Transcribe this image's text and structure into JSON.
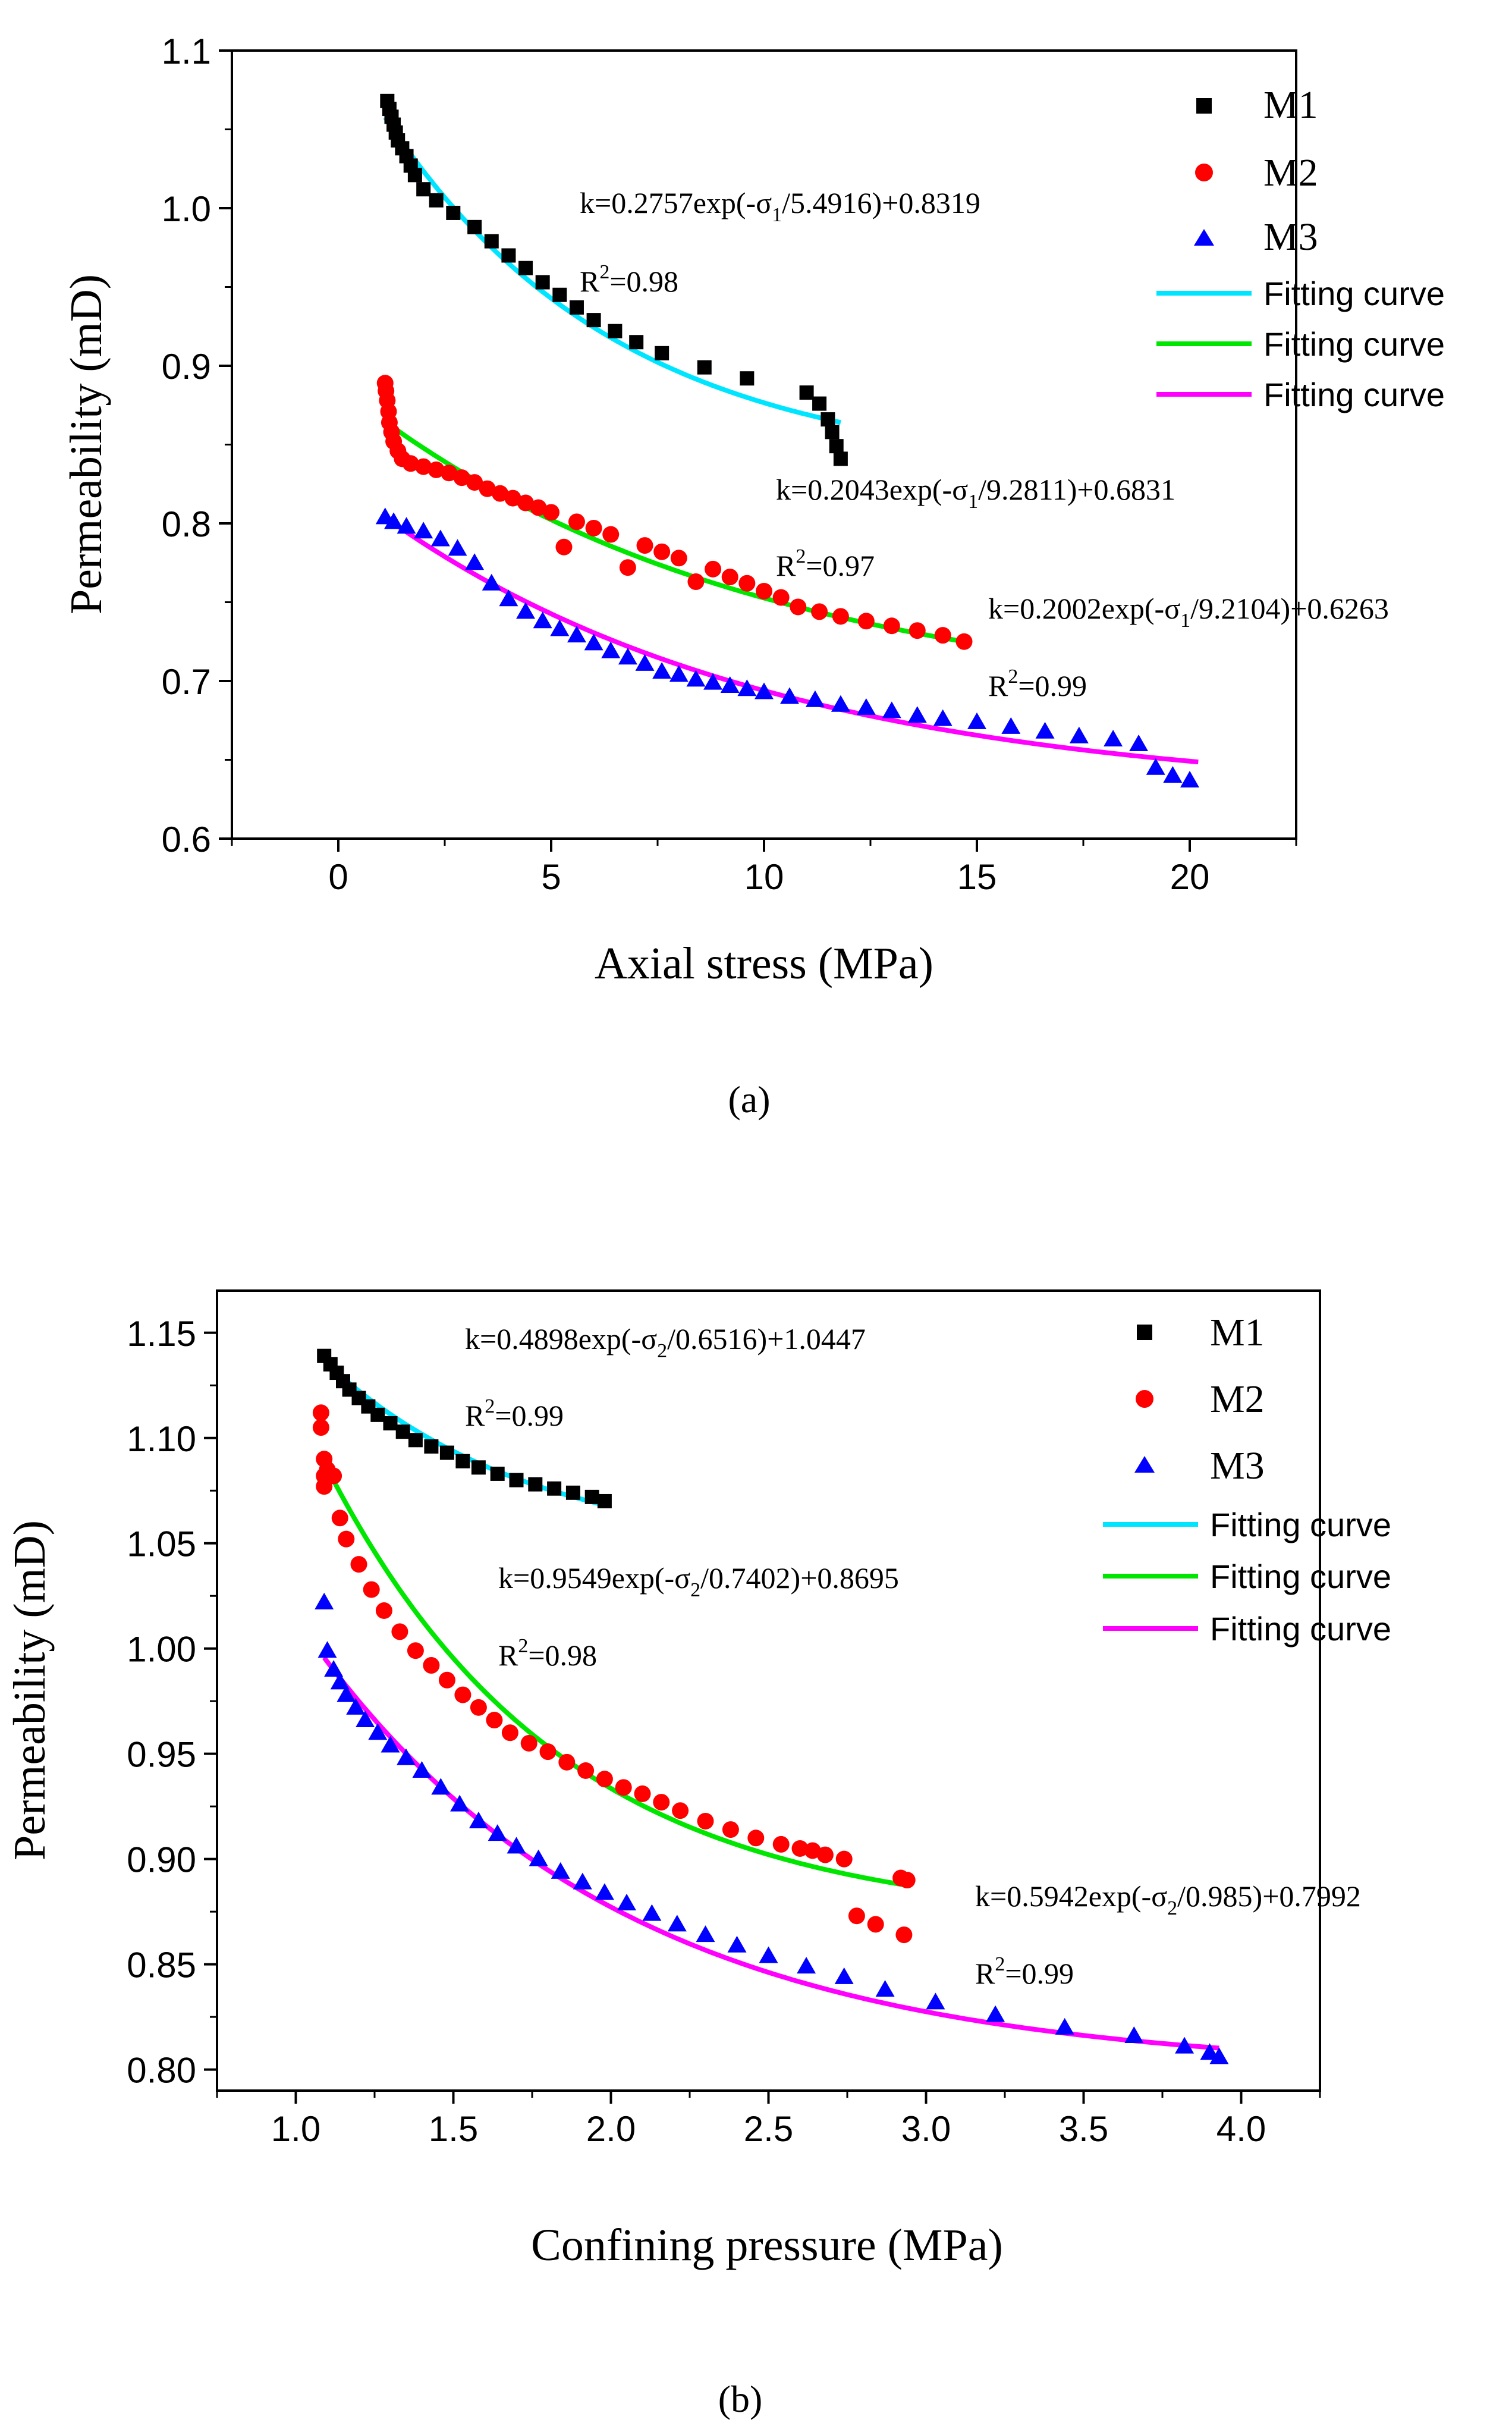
{
  "chart_data": [
    {
      "type": "scatter",
      "panel_label": "(a)",
      "xlabel": "Axial stress (MPa)",
      "ylabel": "Permeability (mD)",
      "xlim": [
        -2.5,
        22.5
      ],
      "ylim": [
        0.6,
        1.1
      ],
      "xticks": [
        0,
        5,
        10,
        15,
        20
      ],
      "yticks": [
        0.6,
        0.7,
        0.8,
        0.9,
        1.0,
        1.1
      ],
      "xtick_labels": [
        "0",
        "5",
        "10",
        "15",
        "20"
      ],
      "ytick_labels": [
        "0.6",
        "0.7",
        "0.8",
        "0.9",
        "1.0",
        "1.1"
      ],
      "series": [
        {
          "name": "M1",
          "marker": "square",
          "color": "#000000",
          "x": [
            1.15,
            1.2,
            1.25,
            1.3,
            1.35,
            1.4,
            1.5,
            1.6,
            1.7,
            1.8,
            2.0,
            2.3,
            2.7,
            3.2,
            3.6,
            4.0,
            4.4,
            4.8,
            5.2,
            5.6,
            6.0,
            6.5,
            7.0,
            7.6,
            8.6,
            9.6,
            11.0,
            11.3,
            11.5,
            11.6,
            11.7,
            11.8
          ],
          "y": [
            1.068,
            1.063,
            1.058,
            1.053,
            1.048,
            1.043,
            1.038,
            1.033,
            1.027,
            1.021,
            1.012,
            1.005,
            0.997,
            0.988,
            0.979,
            0.97,
            0.962,
            0.953,
            0.945,
            0.937,
            0.929,
            0.922,
            0.915,
            0.908,
            0.899,
            0.892,
            0.883,
            0.876,
            0.866,
            0.858,
            0.849,
            0.841
          ]
        },
        {
          "name": "M2",
          "marker": "circle",
          "color": "#ff0000",
          "x": [
            1.1,
            1.12,
            1.15,
            1.18,
            1.2,
            1.25,
            1.3,
            1.4,
            1.5,
            1.7,
            2.0,
            2.3,
            2.6,
            2.9,
            3.2,
            3.5,
            3.8,
            4.1,
            4.4,
            4.7,
            5.0,
            5.3,
            5.6,
            6.0,
            6.4,
            6.8,
            7.2,
            7.6,
            8.0,
            8.4,
            8.8,
            9.2,
            9.6,
            10.0,
            10.4,
            10.8,
            11.3,
            11.8,
            12.4,
            13.0,
            13.6,
            14.2,
            14.7
          ],
          "y": [
            0.889,
            0.884,
            0.878,
            0.871,
            0.864,
            0.858,
            0.852,
            0.846,
            0.841,
            0.838,
            0.836,
            0.834,
            0.832,
            0.829,
            0.826,
            0.822,
            0.819,
            0.816,
            0.813,
            0.81,
            0.807,
            0.785,
            0.801,
            0.797,
            0.793,
            0.772,
            0.786,
            0.782,
            0.778,
            0.763,
            0.771,
            0.766,
            0.762,
            0.757,
            0.753,
            0.747,
            0.744,
            0.741,
            0.738,
            0.735,
            0.732,
            0.729,
            0.725
          ]
        },
        {
          "name": "M3",
          "marker": "triangle",
          "color": "#0000ff",
          "x": [
            1.1,
            1.3,
            1.6,
            2.0,
            2.4,
            2.8,
            3.2,
            3.6,
            4.0,
            4.4,
            4.8,
            5.2,
            5.6,
            6.0,
            6.4,
            6.8,
            7.2,
            7.6,
            8.0,
            8.4,
            8.8,
            9.2,
            9.6,
            10.0,
            10.6,
            11.2,
            11.8,
            12.4,
            13.0,
            13.6,
            14.2,
            15.0,
            15.8,
            16.6,
            17.4,
            18.2,
            18.8,
            19.2,
            19.6,
            20.0
          ],
          "y": [
            0.804,
            0.801,
            0.798,
            0.795,
            0.79,
            0.784,
            0.775,
            0.762,
            0.752,
            0.744,
            0.738,
            0.733,
            0.729,
            0.724,
            0.719,
            0.715,
            0.711,
            0.706,
            0.704,
            0.701,
            0.699,
            0.697,
            0.695,
            0.693,
            0.69,
            0.688,
            0.685,
            0.683,
            0.681,
            0.678,
            0.676,
            0.674,
            0.671,
            0.668,
            0.665,
            0.663,
            0.66,
            0.645,
            0.64,
            0.637
          ]
        }
      ],
      "fits": [
        {
          "name": "Fitting curve",
          "color": "#00e5ff",
          "a": 0.2757,
          "b": 5.4916,
          "c": 0.8319,
          "x_range": [
            1.1,
            11.8
          ]
        },
        {
          "name": "Fitting curve",
          "color": "#00e600",
          "a": 0.2043,
          "b": 9.2811,
          "c": 0.6831,
          "x_range": [
            1.1,
            14.7
          ]
        },
        {
          "name": "Fitting curve",
          "color": "#ff00ff",
          "a": 0.2002,
          "b": 9.2104,
          "c": 0.6263,
          "x_range": [
            1.1,
            20.2
          ]
        }
      ],
      "legend": [
        "M1",
        "M2",
        "M3",
        "Fitting curve",
        "Fitting curve",
        "Fitting curve"
      ],
      "legend_position": "top-right",
      "annotations": [
        {
          "pre": "k=0.2757exp(-σ",
          "sub": "1",
          "post": "/5.4916)+0.8319",
          "r2_pre": "R",
          "r2_sup": "2",
          "r2_post": "=0.98"
        },
        {
          "pre": "k=0.2043exp(-σ",
          "sub": "1",
          "post": "/9.2811)+0.6831",
          "r2_pre": "R",
          "r2_sup": "2",
          "r2_post": "=0.97"
        },
        {
          "pre": "k=0.2002exp(-σ",
          "sub": "1",
          "post": "/9.2104)+0.6263",
          "r2_pre": "R",
          "r2_sup": "2",
          "r2_post": "=0.99"
        }
      ]
    },
    {
      "type": "scatter",
      "panel_label": "(b)",
      "xlabel": "Confining pressure (MPa)",
      "ylabel": "Permeability (mD)",
      "xlim": [
        0.75,
        4.25
      ],
      "ylim": [
        0.79,
        1.17
      ],
      "xticks": [
        1.0,
        1.5,
        2.0,
        2.5,
        3.0,
        3.5,
        4.0
      ],
      "yticks": [
        0.8,
        0.85,
        0.9,
        0.95,
        1.0,
        1.05,
        1.1,
        1.15
      ],
      "xtick_labels": [
        "1.0",
        "1.5",
        "2.0",
        "2.5",
        "3.0",
        "3.5",
        "4.0"
      ],
      "ytick_labels": [
        "0.80",
        "0.85",
        "0.90",
        "0.95",
        "1.00",
        "1.05",
        "1.10",
        "1.15"
      ],
      "series": [
        {
          "name": "M1",
          "marker": "square",
          "color": "#000000",
          "x": [
            1.09,
            1.11,
            1.13,
            1.15,
            1.17,
            1.2,
            1.23,
            1.26,
            1.3,
            1.34,
            1.38,
            1.43,
            1.48,
            1.53,
            1.58,
            1.64,
            1.7,
            1.76,
            1.82,
            1.88,
            1.94,
            1.98
          ],
          "y": [
            1.139,
            1.135,
            1.131,
            1.127,
            1.123,
            1.119,
            1.115,
            1.111,
            1.107,
            1.103,
            1.099,
            1.096,
            1.093,
            1.089,
            1.086,
            1.083,
            1.08,
            1.078,
            1.076,
            1.074,
            1.072,
            1.07
          ]
        },
        {
          "name": "M2",
          "marker": "circle",
          "color": "#ff0000",
          "x": [
            1.08,
            1.08,
            1.09,
            1.09,
            1.09,
            1.1,
            1.12,
            1.14,
            1.16,
            1.2,
            1.24,
            1.28,
            1.33,
            1.38,
            1.43,
            1.48,
            1.53,
            1.58,
            1.63,
            1.68,
            1.74,
            1.8,
            1.86,
            1.92,
            1.98,
            2.04,
            2.1,
            2.16,
            2.22,
            2.3,
            2.38,
            2.46,
            2.54,
            2.6,
            2.64,
            2.68,
            2.74,
            2.78,
            2.84,
            2.92,
            2.93,
            2.94
          ],
          "y": [
            1.112,
            1.105,
            1.09,
            1.082,
            1.077,
            1.085,
            1.082,
            1.062,
            1.052,
            1.04,
            1.028,
            1.018,
            1.008,
            0.999,
            0.992,
            0.985,
            0.978,
            0.972,
            0.966,
            0.96,
            0.955,
            0.951,
            0.946,
            0.942,
            0.938,
            0.934,
            0.931,
            0.927,
            0.923,
            0.918,
            0.914,
            0.91,
            0.907,
            0.905,
            0.904,
            0.902,
            0.9,
            0.873,
            0.869,
            0.891,
            0.864,
            0.89
          ]
        },
        {
          "name": "M3",
          "marker": "triangle",
          "color": "#0000ff",
          "x": [
            1.09,
            1.1,
            1.12,
            1.14,
            1.16,
            1.19,
            1.22,
            1.26,
            1.3,
            1.35,
            1.4,
            1.46,
            1.52,
            1.58,
            1.64,
            1.7,
            1.77,
            1.84,
            1.91,
            1.98,
            2.05,
            2.13,
            2.21,
            2.3,
            2.4,
            2.5,
            2.62,
            2.74,
            2.87,
            3.03,
            3.22,
            3.44,
            3.66,
            3.82,
            3.9,
            3.93
          ],
          "y": [
            1.022,
            0.999,
            0.99,
            0.984,
            0.978,
            0.972,
            0.966,
            0.96,
            0.954,
            0.948,
            0.942,
            0.934,
            0.926,
            0.918,
            0.912,
            0.906,
            0.9,
            0.894,
            0.889,
            0.884,
            0.879,
            0.874,
            0.869,
            0.864,
            0.859,
            0.854,
            0.849,
            0.844,
            0.838,
            0.832,
            0.826,
            0.82,
            0.816,
            0.811,
            0.808,
            0.806
          ]
        }
      ],
      "fits": [
        {
          "name": "Fitting curve",
          "color": "#00e5ff",
          "a": 0.4898,
          "b": 0.6516,
          "c": 1.0447,
          "x_range": [
            1.09,
            1.98
          ]
        },
        {
          "name": "Fitting curve",
          "color": "#00e600",
          "a": 0.9549,
          "b": 0.7402,
          "c": 0.8695,
          "x_range": [
            1.08,
            2.93
          ]
        },
        {
          "name": "Fitting curve",
          "color": "#ff00ff",
          "a": 0.5942,
          "b": 0.985,
          "c": 0.7992,
          "x_range": [
            1.09,
            3.93
          ]
        }
      ],
      "legend": [
        "M1",
        "M2",
        "M3",
        "Fitting curve",
        "Fitting curve",
        "Fitting curve"
      ],
      "legend_position": "top-right",
      "annotations": [
        {
          "pre": "k=0.4898exp(-σ",
          "sub": "2",
          "post": "/0.6516)+1.0447",
          "r2_pre": "R",
          "r2_sup": "2",
          "r2_post": "=0.99"
        },
        {
          "pre": "k=0.9549exp(-σ",
          "sub": "2",
          "post": "/0.7402)+0.8695",
          "r2_pre": "R",
          "r2_sup": "2",
          "r2_post": "=0.98"
        },
        {
          "pre": "k=0.5942exp(-σ",
          "sub": "2",
          "post": "/0.985)+0.7992",
          "r2_pre": "R",
          "r2_sup": "2",
          "r2_post": "=0.99"
        }
      ]
    }
  ]
}
